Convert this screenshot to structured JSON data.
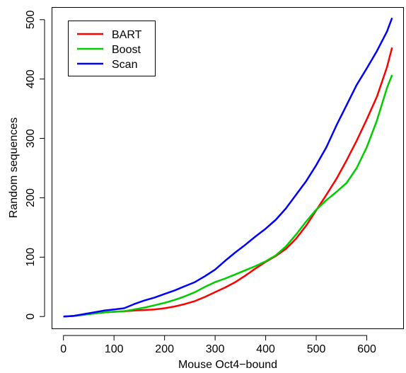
{
  "chart_data": {
    "type": "line",
    "title": "",
    "xlabel": "Mouse Oct4−bound",
    "ylabel": "Random sequences",
    "xlim": [
      -22,
      672
    ],
    "ylim": [
      -20,
      520
    ],
    "x_ticks": [
      0,
      100,
      200,
      300,
      400,
      500,
      600
    ],
    "y_ticks": [
      0,
      100,
      200,
      300,
      400,
      500
    ],
    "grid": false,
    "legend_position": "top-left",
    "series": [
      {
        "name": "BART",
        "color": "#ff0000",
        "x": [
          0,
          20,
          40,
          60,
          80,
          100,
          120,
          140,
          160,
          180,
          200,
          220,
          240,
          260,
          280,
          300,
          320,
          340,
          360,
          380,
          400,
          420,
          440,
          460,
          480,
          500,
          520,
          540,
          560,
          580,
          600,
          620,
          640,
          650
        ],
        "y": [
          0,
          1,
          3,
          5,
          7,
          8,
          9,
          10,
          11,
          12,
          14,
          17,
          21,
          26,
          33,
          41,
          49,
          58,
          69,
          81,
          92,
          102,
          114,
          131,
          153,
          179,
          205,
          232,
          263,
          296,
          332,
          370,
          420,
          453
        ]
      },
      {
        "name": "Boost",
        "color": "#00cc00",
        "x": [
          0,
          20,
          40,
          60,
          80,
          100,
          120,
          140,
          160,
          180,
          200,
          220,
          240,
          260,
          280,
          300,
          320,
          340,
          360,
          380,
          400,
          420,
          440,
          460,
          480,
          500,
          520,
          540,
          560,
          580,
          600,
          620,
          640,
          650
        ],
        "y": [
          0,
          1,
          3,
          5,
          7,
          8,
          9,
          12,
          15,
          19,
          23,
          28,
          34,
          41,
          50,
          58,
          64,
          71,
          78,
          85,
          93,
          103,
          118,
          138,
          160,
          180,
          196,
          210,
          225,
          250,
          285,
          330,
          385,
          407
        ]
      },
      {
        "name": "Scan",
        "color": "#0000ff",
        "x": [
          0,
          20,
          40,
          60,
          80,
          100,
          120,
          140,
          160,
          180,
          200,
          220,
          240,
          260,
          280,
          300,
          320,
          340,
          360,
          380,
          400,
          420,
          440,
          460,
          480,
          500,
          520,
          540,
          560,
          580,
          600,
          620,
          640,
          650
        ],
        "y": [
          0,
          1,
          4,
          7,
          10,
          12,
          14,
          21,
          27,
          32,
          38,
          44,
          51,
          58,
          68,
          79,
          94,
          108,
          121,
          135,
          148,
          163,
          182,
          205,
          228,
          255,
          285,
          322,
          356,
          390,
          418,
          447,
          480,
          503
        ]
      }
    ]
  }
}
